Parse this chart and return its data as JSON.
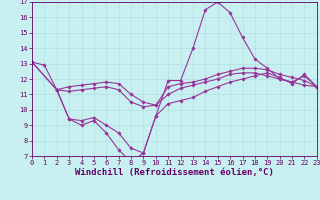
{
  "bg_color": "#c8f0f0",
  "line_color": "#993399",
  "grid_color": "#aadddd",
  "axis_color": "#660066",
  "xlabel": "Windchill (Refroidissement éolien,°C)",
  "ylim": [
    7,
    17
  ],
  "xlim": [
    0,
    23
  ],
  "yticks": [
    7,
    8,
    9,
    10,
    11,
    12,
    13,
    14,
    15,
    16,
    17
  ],
  "xticks": [
    0,
    1,
    2,
    3,
    4,
    5,
    6,
    7,
    8,
    9,
    10,
    11,
    12,
    13,
    14,
    15,
    16,
    17,
    18,
    19,
    20,
    21,
    22,
    23
  ],
  "line1": {
    "x": [
      0,
      1,
      2,
      3,
      4,
      5,
      6,
      7,
      8,
      9,
      10,
      11,
      12,
      13,
      14,
      15,
      16,
      17,
      18,
      19,
      20,
      21,
      22,
      23
    ],
    "y": [
      13.1,
      12.9,
      11.3,
      9.4,
      9.0,
      9.3,
      8.5,
      7.4,
      6.6,
      7.2,
      9.6,
      11.9,
      11.9,
      14.0,
      16.5,
      17.0,
      16.3,
      14.7,
      13.3,
      12.7,
      12.0,
      11.8,
      12.2,
      11.5
    ]
  },
  "line2": {
    "x": [
      0,
      2,
      3,
      4,
      5,
      6,
      7,
      8,
      9,
      10,
      11,
      12,
      13,
      14,
      15,
      16,
      17,
      18,
      19,
      20,
      21,
      22,
      23
    ],
    "y": [
      13.1,
      11.3,
      11.2,
      11.3,
      11.4,
      11.5,
      11.3,
      10.5,
      10.2,
      10.3,
      11.0,
      11.4,
      11.6,
      11.8,
      12.0,
      12.3,
      12.4,
      12.4,
      12.2,
      12.0,
      11.8,
      11.6,
      11.5
    ]
  },
  "line3": {
    "x": [
      0,
      2,
      3,
      4,
      5,
      6,
      7,
      8,
      9,
      10,
      11,
      12,
      13,
      14,
      15,
      16,
      17,
      18,
      19,
      20,
      21,
      22,
      23
    ],
    "y": [
      13.1,
      11.3,
      11.5,
      11.6,
      11.7,
      11.8,
      11.7,
      11.0,
      10.5,
      10.3,
      11.5,
      11.7,
      11.8,
      12.0,
      12.3,
      12.5,
      12.7,
      12.7,
      12.6,
      12.3,
      12.1,
      11.9,
      11.5
    ]
  },
  "line4": {
    "x": [
      2,
      3,
      4,
      5,
      6,
      7,
      8,
      9,
      10,
      11,
      12,
      13,
      14,
      15,
      16,
      17,
      18,
      19,
      20,
      21,
      22,
      23
    ],
    "y": [
      11.3,
      9.4,
      9.3,
      9.5,
      9.0,
      8.5,
      7.5,
      7.2,
      9.6,
      10.4,
      10.6,
      10.8,
      11.2,
      11.5,
      11.8,
      12.0,
      12.2,
      12.4,
      12.1,
      11.7,
      12.3,
      11.5
    ]
  },
  "marker": "D",
  "markersize": 1.8,
  "linewidth": 0.8,
  "tick_fontsize": 5.0,
  "xlabel_fontsize": 6.5
}
